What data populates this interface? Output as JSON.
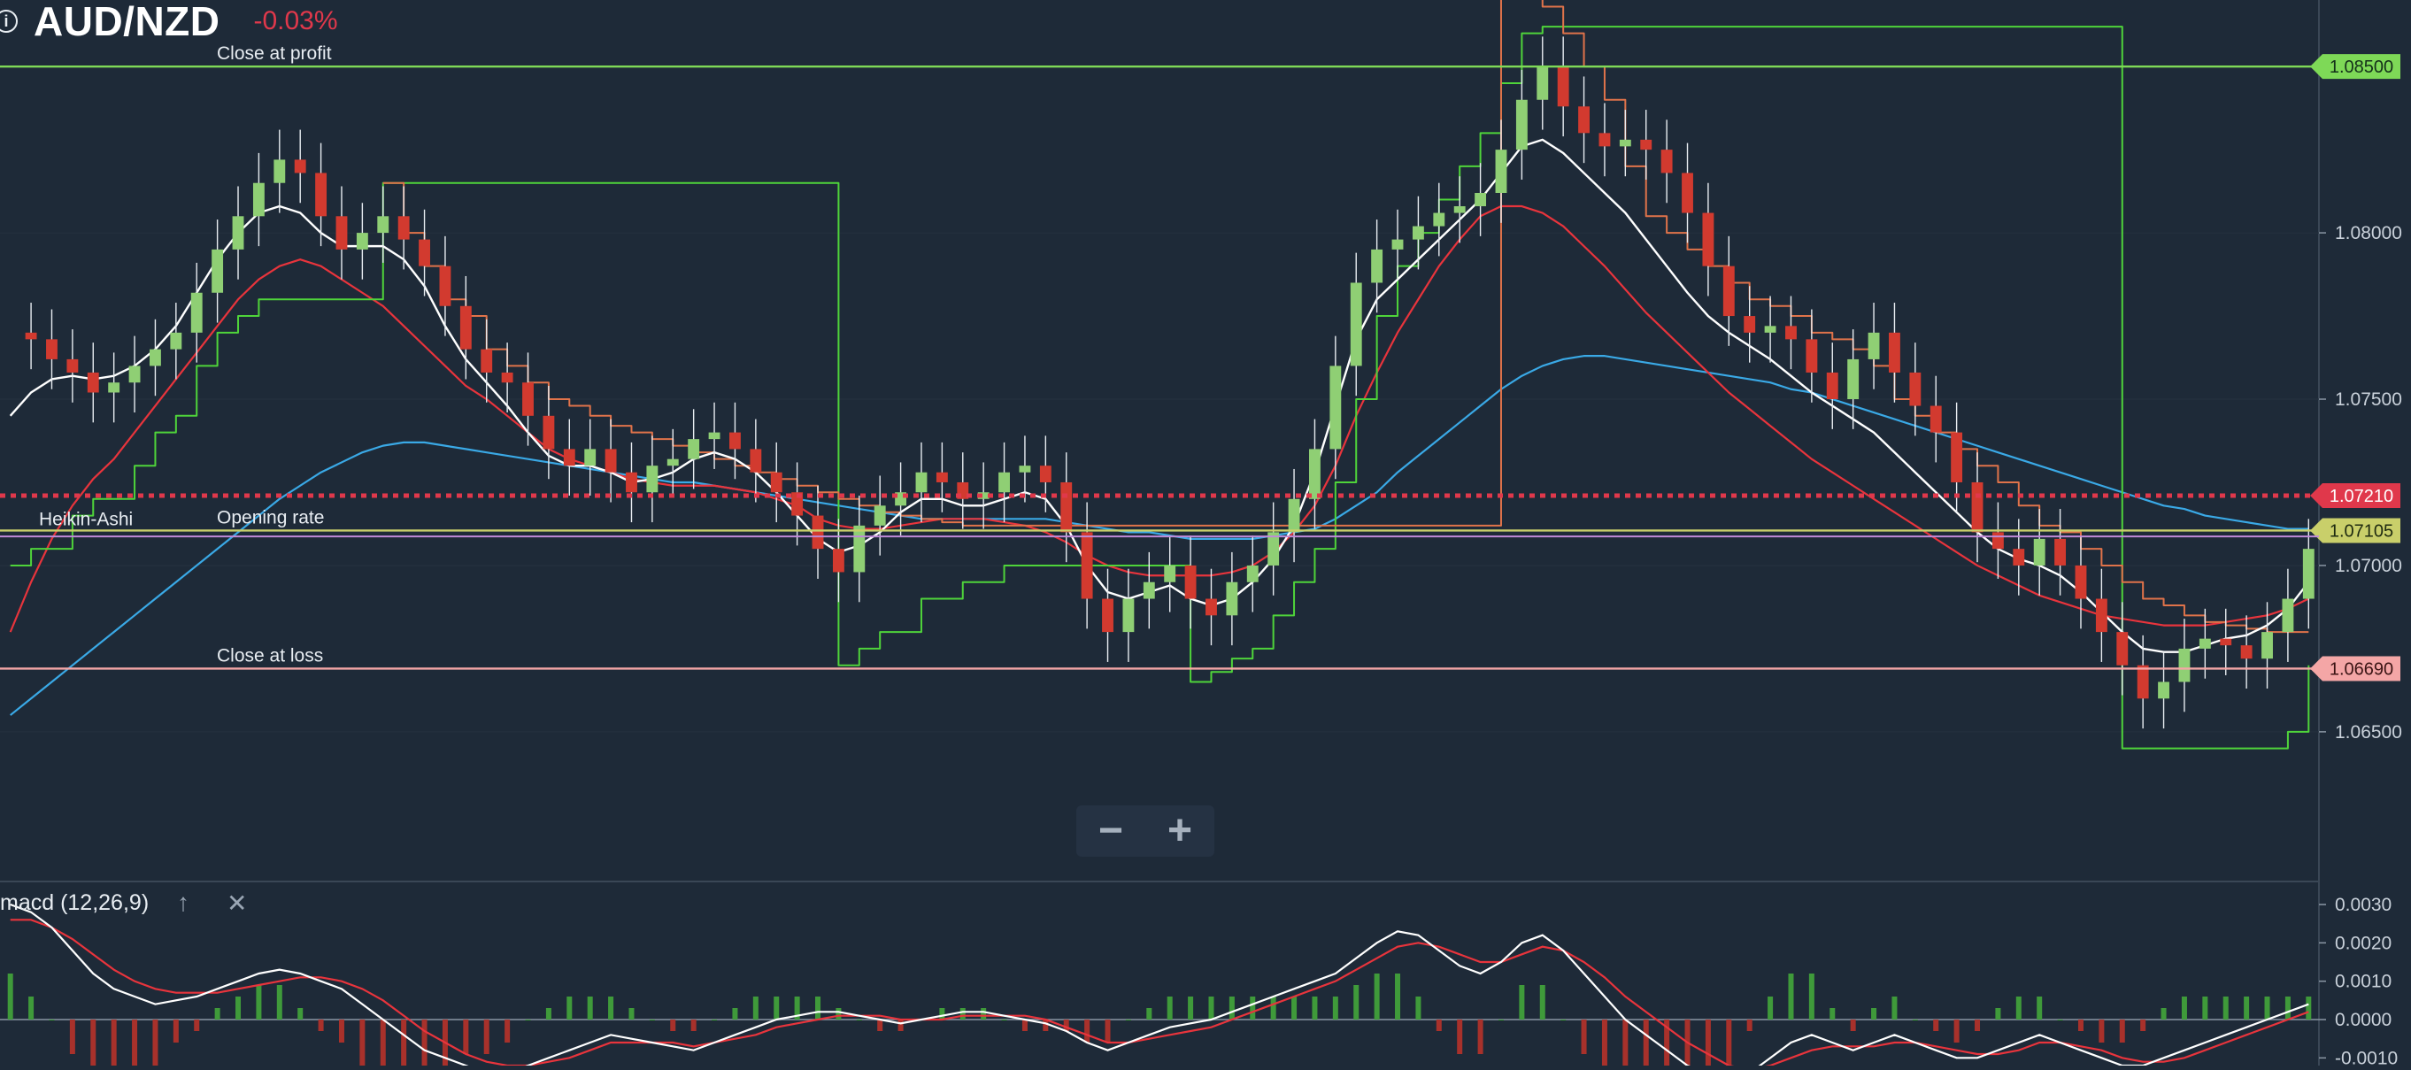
{
  "header": {
    "info_icon": "info-icon",
    "pair": "AUD/NZD",
    "change": "-0.03%",
    "change_color": "#e0384b"
  },
  "zoom": {
    "minus_label": "−",
    "plus_label": "+"
  },
  "macd": {
    "label": "macd (12,26,9)",
    "up_icon": "arrow-up-icon",
    "close_icon": "close-icon"
  },
  "colors": {
    "background": "#1e2a38",
    "profit": "#7ed957",
    "loss": "#f4a6a6",
    "opening": "#c9cf6a",
    "current": "#e0384b",
    "white_ma": "#ffffff",
    "red_ma": "#e8343c",
    "blue_ma": "#3aa9e6",
    "green_step": "#4fd43a",
    "orange_step": "#e0734a",
    "purple_line": "#c08ad8"
  },
  "chart_data": [
    {
      "type": "candlestick",
      "style": "Heikin-Ashi",
      "title": "AUD/NZD",
      "ylim": [
        1.0605,
        1.087
      ],
      "yticks": [
        "1.08000",
        "1.07500",
        "1.07000",
        "1.06500"
      ],
      "grid": true,
      "levels": [
        {
          "name": "Close at profit",
          "value": 1.085,
          "label": "1.08500"
        },
        {
          "name": "",
          "value": 1.0721,
          "label": "1.07210",
          "style": "dotted"
        },
        {
          "name": "Opening rate",
          "value": 1.07105,
          "label": "1.07105"
        },
        {
          "name": "Close at loss",
          "value": 1.0669,
          "label": "1.06690"
        }
      ],
      "series_label": "Heikin-Ashi",
      "price": [
        1.077,
        1.0768,
        1.0762,
        1.0758,
        1.0752,
        1.0755,
        1.076,
        1.0765,
        1.077,
        1.0782,
        1.0795,
        1.0805,
        1.0815,
        1.0822,
        1.0818,
        1.0805,
        1.0795,
        1.08,
        1.0805,
        1.0798,
        1.079,
        1.0778,
        1.0765,
        1.0758,
        1.0755,
        1.0745,
        1.0735,
        1.073,
        1.0735,
        1.0728,
        1.0722,
        1.073,
        1.0732,
        1.0738,
        1.074,
        1.0735,
        1.0728,
        1.0722,
        1.0715,
        1.0705,
        1.0698,
        1.0712,
        1.0718,
        1.0722,
        1.0728,
        1.0725,
        1.072,
        1.0722,
        1.0728,
        1.073,
        1.0725,
        1.071,
        1.069,
        1.068,
        1.069,
        1.0695,
        1.07,
        1.069,
        1.0685,
        1.0695,
        1.07,
        1.071,
        1.072,
        1.0735,
        1.076,
        1.0785,
        1.0795,
        1.0798,
        1.0802,
        1.0806,
        1.0808,
        1.0812,
        1.0825,
        1.084,
        1.085,
        1.0838,
        1.083,
        1.0826,
        1.0828,
        1.0825,
        1.0818,
        1.0806,
        1.079,
        1.0775,
        1.077,
        1.0772,
        1.0768,
        1.0758,
        1.075,
        1.0762,
        1.077,
        1.0758,
        1.0748,
        1.074,
        1.0725,
        1.071,
        1.0705,
        1.07,
        1.0708,
        1.07,
        1.069,
        1.068,
        1.067,
        1.066,
        1.0665,
        1.0675,
        1.0678,
        1.0676,
        1.0672,
        1.068,
        1.069,
        1.0705
      ],
      "white_ma": [
        1.0745,
        1.0752,
        1.0756,
        1.0757,
        1.0756,
        1.0757,
        1.076,
        1.0765,
        1.0772,
        1.0782,
        1.0792,
        1.08,
        1.0806,
        1.0808,
        1.0806,
        1.08,
        1.0796,
        1.0796,
        1.0796,
        1.0792,
        1.0784,
        1.0772,
        1.0762,
        1.0755,
        1.0748,
        1.074,
        1.0733,
        1.073,
        1.073,
        1.0728,
        1.0725,
        1.0726,
        1.0728,
        1.0732,
        1.0734,
        1.0732,
        1.0728,
        1.0722,
        1.0715,
        1.0708,
        1.0704,
        1.0706,
        1.071,
        1.0716,
        1.072,
        1.072,
        1.0718,
        1.0718,
        1.072,
        1.0722,
        1.072,
        1.0712,
        1.07,
        1.0692,
        1.069,
        1.0692,
        1.0694,
        1.069,
        1.0688,
        1.069,
        1.0695,
        1.0702,
        1.0712,
        1.0728,
        1.0748,
        1.0768,
        1.078,
        1.0786,
        1.0792,
        1.0798,
        1.0804,
        1.081,
        1.0818,
        1.0826,
        1.0828,
        1.0824,
        1.0818,
        1.0812,
        1.0806,
        1.0798,
        1.079,
        1.0782,
        1.0775,
        1.077,
        1.0766,
        1.0762,
        1.0757,
        1.0752,
        1.0748,
        1.0744,
        1.074,
        1.0734,
        1.0728,
        1.0722,
        1.0716,
        1.071,
        1.0705,
        1.0702,
        1.07,
        1.0697,
        1.0692,
        1.0686,
        1.068,
        1.0675,
        1.0674,
        1.0674,
        1.0676,
        1.0678,
        1.0679,
        1.0682,
        1.0687,
        1.0695
      ],
      "red_ma": [
        1.068,
        1.0695,
        1.0708,
        1.0718,
        1.0726,
        1.0732,
        1.074,
        1.0748,
        1.0756,
        1.0764,
        1.0772,
        1.078,
        1.0786,
        1.079,
        1.0792,
        1.079,
        1.0786,
        1.0782,
        1.0778,
        1.0772,
        1.0766,
        1.076,
        1.0754,
        1.075,
        1.0745,
        1.074,
        1.0735,
        1.0732,
        1.073,
        1.0728,
        1.0726,
        1.0725,
        1.0724,
        1.0724,
        1.0724,
        1.0723,
        1.0722,
        1.072,
        1.0718,
        1.0714,
        1.0712,
        1.0711,
        1.0711,
        1.0712,
        1.0713,
        1.0714,
        1.0714,
        1.0714,
        1.0713,
        1.0712,
        1.071,
        1.0707,
        1.0703,
        1.07,
        1.0698,
        1.0697,
        1.0697,
        1.0697,
        1.0697,
        1.0698,
        1.07,
        1.0704,
        1.071,
        1.0718,
        1.073,
        1.0745,
        1.0758,
        1.077,
        1.078,
        1.079,
        1.0798,
        1.0805,
        1.0808,
        1.0808,
        1.0806,
        1.0802,
        1.0796,
        1.079,
        1.0783,
        1.0776,
        1.077,
        1.0764,
        1.0758,
        1.0752,
        1.0747,
        1.0742,
        1.0737,
        1.0732,
        1.0728,
        1.0724,
        1.072,
        1.0716,
        1.0712,
        1.0708,
        1.0704,
        1.07,
        1.0697,
        1.0694,
        1.0691,
        1.0689,
        1.0687,
        1.0685,
        1.0684,
        1.0683,
        1.0682,
        1.0682,
        1.0682,
        1.0683,
        1.0684,
        1.0685,
        1.0687,
        1.069
      ],
      "blue_ma": [
        1.0655,
        1.066,
        1.0665,
        1.067,
        1.0675,
        1.068,
        1.0685,
        1.069,
        1.0695,
        1.07,
        1.0705,
        1.071,
        1.0715,
        1.072,
        1.0724,
        1.0728,
        1.0731,
        1.0734,
        1.0736,
        1.0737,
        1.0737,
        1.0736,
        1.0735,
        1.0734,
        1.0733,
        1.0732,
        1.0731,
        1.073,
        1.0729,
        1.0728,
        1.0727,
        1.0726,
        1.0725,
        1.0725,
        1.0724,
        1.0723,
        1.0722,
        1.0721,
        1.072,
        1.0719,
        1.0718,
        1.0717,
        1.0716,
        1.0715,
        1.0714,
        1.0714,
        1.0714,
        1.0714,
        1.0714,
        1.0714,
        1.0714,
        1.0713,
        1.0712,
        1.0711,
        1.071,
        1.071,
        1.0709,
        1.0708,
        1.0708,
        1.0708,
        1.0708,
        1.0709,
        1.071,
        1.0711,
        1.0714,
        1.0718,
        1.0722,
        1.0728,
        1.0733,
        1.0738,
        1.0743,
        1.0748,
        1.0753,
        1.0757,
        1.076,
        1.0762,
        1.0763,
        1.0763,
        1.0762,
        1.0761,
        1.076,
        1.0759,
        1.0758,
        1.0757,
        1.0756,
        1.0755,
        1.0753,
        1.0752,
        1.075,
        1.0748,
        1.0746,
        1.0744,
        1.0742,
        1.074,
        1.0738,
        1.0736,
        1.0734,
        1.0732,
        1.073,
        1.0728,
        1.0726,
        1.0724,
        1.0722,
        1.072,
        1.0718,
        1.0717,
        1.0715,
        1.0714,
        1.0713,
        1.0712,
        1.0711,
        1.0711
      ],
      "green_step": [
        1.07,
        1.0705,
        1.0705,
        1.0715,
        1.072,
        1.072,
        1.073,
        1.074,
        1.0745,
        1.076,
        1.077,
        1.0775,
        1.078,
        1.078,
        1.078,
        1.078,
        1.078,
        1.078,
        1.0815,
        1.0815,
        1.0815,
        1.0815,
        1.0815,
        1.0815,
        1.0815,
        1.0815,
        1.0815,
        1.0815,
        1.0815,
        1.0815,
        1.0815,
        1.0815,
        1.0815,
        1.0815,
        1.0815,
        1.0815,
        1.0815,
        1.0815,
        1.0815,
        1.0815,
        1.067,
        1.0675,
        1.068,
        1.068,
        1.069,
        1.069,
        1.0695,
        1.0695,
        1.07,
        1.07,
        1.07,
        1.07,
        1.07,
        1.07,
        1.07,
        1.07,
        1.07,
        1.0665,
        1.0668,
        1.0672,
        1.0675,
        1.0685,
        1.0695,
        1.0705,
        1.0725,
        1.075,
        1.0775,
        1.079,
        1.08,
        1.081,
        1.082,
        1.083,
        1.0845,
        1.086,
        1.0862,
        1.0862,
        1.0862,
        1.0862,
        1.0862,
        1.0862,
        1.0862,
        1.0862,
        1.0862,
        1.0862,
        1.0862,
        1.0862,
        1.0862,
        1.0862,
        1.0862,
        1.0862,
        1.0862,
        1.0862,
        1.0862,
        1.0862,
        1.0862,
        1.0862,
        1.0862,
        1.0862,
        1.0862,
        1.0862,
        1.0862,
        1.0862,
        1.0645,
        1.0645,
        1.0645,
        1.0645,
        1.0645,
        1.0645,
        1.0645,
        1.0645,
        1.065,
        1.067
      ],
      "orange_step": [
        null,
        null,
        null,
        null,
        null,
        null,
        null,
        null,
        null,
        null,
        null,
        null,
        null,
        null,
        null,
        null,
        null,
        null,
        1.0815,
        1.08,
        1.079,
        1.078,
        1.0775,
        1.0765,
        1.076,
        1.0755,
        1.075,
        1.0748,
        1.0745,
        1.0742,
        1.074,
        1.0738,
        1.0736,
        1.0734,
        1.0732,
        1.073,
        1.0728,
        1.0726,
        1.0724,
        1.0722,
        1.072,
        1.0718,
        1.0716,
        1.0715,
        1.0714,
        1.0713,
        1.0712,
        1.0712,
        1.0712,
        1.0712,
        1.0712,
        1.0712,
        1.0712,
        1.0712,
        1.0712,
        1.0712,
        1.0712,
        1.0712,
        1.0712,
        1.0712,
        1.0712,
        1.0712,
        1.0712,
        1.0712,
        1.0712,
        1.0712,
        1.0712,
        1.0712,
        1.0712,
        1.0712,
        1.0712,
        1.0712,
        1.0872,
        1.0872,
        1.0868,
        1.086,
        1.085,
        1.084,
        1.082,
        1.0805,
        1.08,
        1.0795,
        1.079,
        1.0785,
        1.078,
        1.0778,
        1.0775,
        1.077,
        1.0768,
        1.0765,
        1.076,
        1.075,
        1.0745,
        1.074,
        1.0735,
        1.073,
        1.0725,
        1.0718,
        1.0712,
        1.071,
        1.0705,
        1.07,
        1.0695,
        1.069,
        1.0688,
        1.0685,
        1.0683,
        1.0682,
        1.0681,
        1.068,
        1.068,
        1.068
      ]
    },
    {
      "type": "line",
      "title": "macd (12,26,9)",
      "ylim": [
        -0.0012,
        0.0036
      ],
      "yticks": [
        "0.0030",
        "0.0020",
        "0.0010",
        "0.0000",
        "-0.0010"
      ],
      "macd": [
        0.003,
        0.0028,
        0.0024,
        0.0018,
        0.0012,
        0.0008,
        0.0006,
        0.0004,
        0.0005,
        0.0006,
        0.0008,
        0.001,
        0.0012,
        0.0013,
        0.0012,
        0.001,
        0.0008,
        0.0004,
        0.0,
        -0.0004,
        -0.0008,
        -0.001,
        -0.0012,
        -0.0014,
        -0.0014,
        -0.0012,
        -0.001,
        -0.0008,
        -0.0006,
        -0.0004,
        -0.0005,
        -0.0006,
        -0.0007,
        -0.0008,
        -0.0006,
        -0.0004,
        -0.0002,
        0.0,
        0.0001,
        0.0002,
        0.0002,
        0.0001,
        0.0,
        -0.0001,
        0.0,
        0.0001,
        0.0002,
        0.0002,
        0.0001,
        0.0,
        -0.0001,
        -0.0003,
        -0.0006,
        -0.0008,
        -0.0006,
        -0.0004,
        -0.0002,
        -0.0001,
        0.0,
        0.0002,
        0.0004,
        0.0006,
        0.0008,
        0.001,
        0.0012,
        0.0016,
        0.002,
        0.0023,
        0.0022,
        0.0018,
        0.0014,
        0.0012,
        0.0015,
        0.002,
        0.0022,
        0.0018,
        0.0012,
        0.0006,
        0.0,
        -0.0004,
        -0.0008,
        -0.0012,
        -0.0014,
        -0.0016,
        -0.0014,
        -0.001,
        -0.0006,
        -0.0004,
        -0.0006,
        -0.0008,
        -0.0006,
        -0.0004,
        -0.0006,
        -0.0008,
        -0.001,
        -0.001,
        -0.0008,
        -0.0006,
        -0.0004,
        -0.0006,
        -0.0008,
        -0.001,
        -0.0012,
        -0.0012,
        -0.001,
        -0.0008,
        -0.0006,
        -0.0004,
        -0.0002,
        0.0,
        0.0002,
        0.0004
      ],
      "signal": [
        0.0026,
        0.0026,
        0.0024,
        0.0021,
        0.0017,
        0.0013,
        0.001,
        0.0008,
        0.0007,
        0.0007,
        0.0007,
        0.0008,
        0.0009,
        0.001,
        0.0011,
        0.0011,
        0.001,
        0.0008,
        0.0005,
        0.0001,
        -0.0003,
        -0.0006,
        -0.0009,
        -0.0011,
        -0.0012,
        -0.0012,
        -0.0011,
        -0.001,
        -0.0008,
        -0.0006,
        -0.0006,
        -0.0006,
        -0.0006,
        -0.0007,
        -0.0006,
        -0.0005,
        -0.0004,
        -0.0002,
        -0.0001,
        0.0,
        0.0001,
        0.0001,
        0.0001,
        0.0,
        0.0,
        0.0,
        0.0001,
        0.0001,
        0.0001,
        0.0001,
        0.0,
        -0.0002,
        -0.0004,
        -0.0006,
        -0.0006,
        -0.0005,
        -0.0004,
        -0.0003,
        -0.0002,
        0.0,
        0.0002,
        0.0004,
        0.0006,
        0.0008,
        0.001,
        0.0013,
        0.0016,
        0.0019,
        0.002,
        0.0019,
        0.0017,
        0.0015,
        0.0015,
        0.0017,
        0.0019,
        0.0018,
        0.0015,
        0.0011,
        0.0006,
        0.0002,
        -0.0002,
        -0.0006,
        -0.0009,
        -0.0012,
        -0.0013,
        -0.0012,
        -0.001,
        -0.0008,
        -0.0007,
        -0.0007,
        -0.0007,
        -0.0006,
        -0.0006,
        -0.0007,
        -0.0008,
        -0.0009,
        -0.0009,
        -0.0008,
        -0.0006,
        -0.0006,
        -0.0007,
        -0.0008,
        -0.001,
        -0.0011,
        -0.0011,
        -0.001,
        -0.0008,
        -0.0006,
        -0.0004,
        -0.0002,
        0.0,
        0.0002
      ]
    }
  ]
}
